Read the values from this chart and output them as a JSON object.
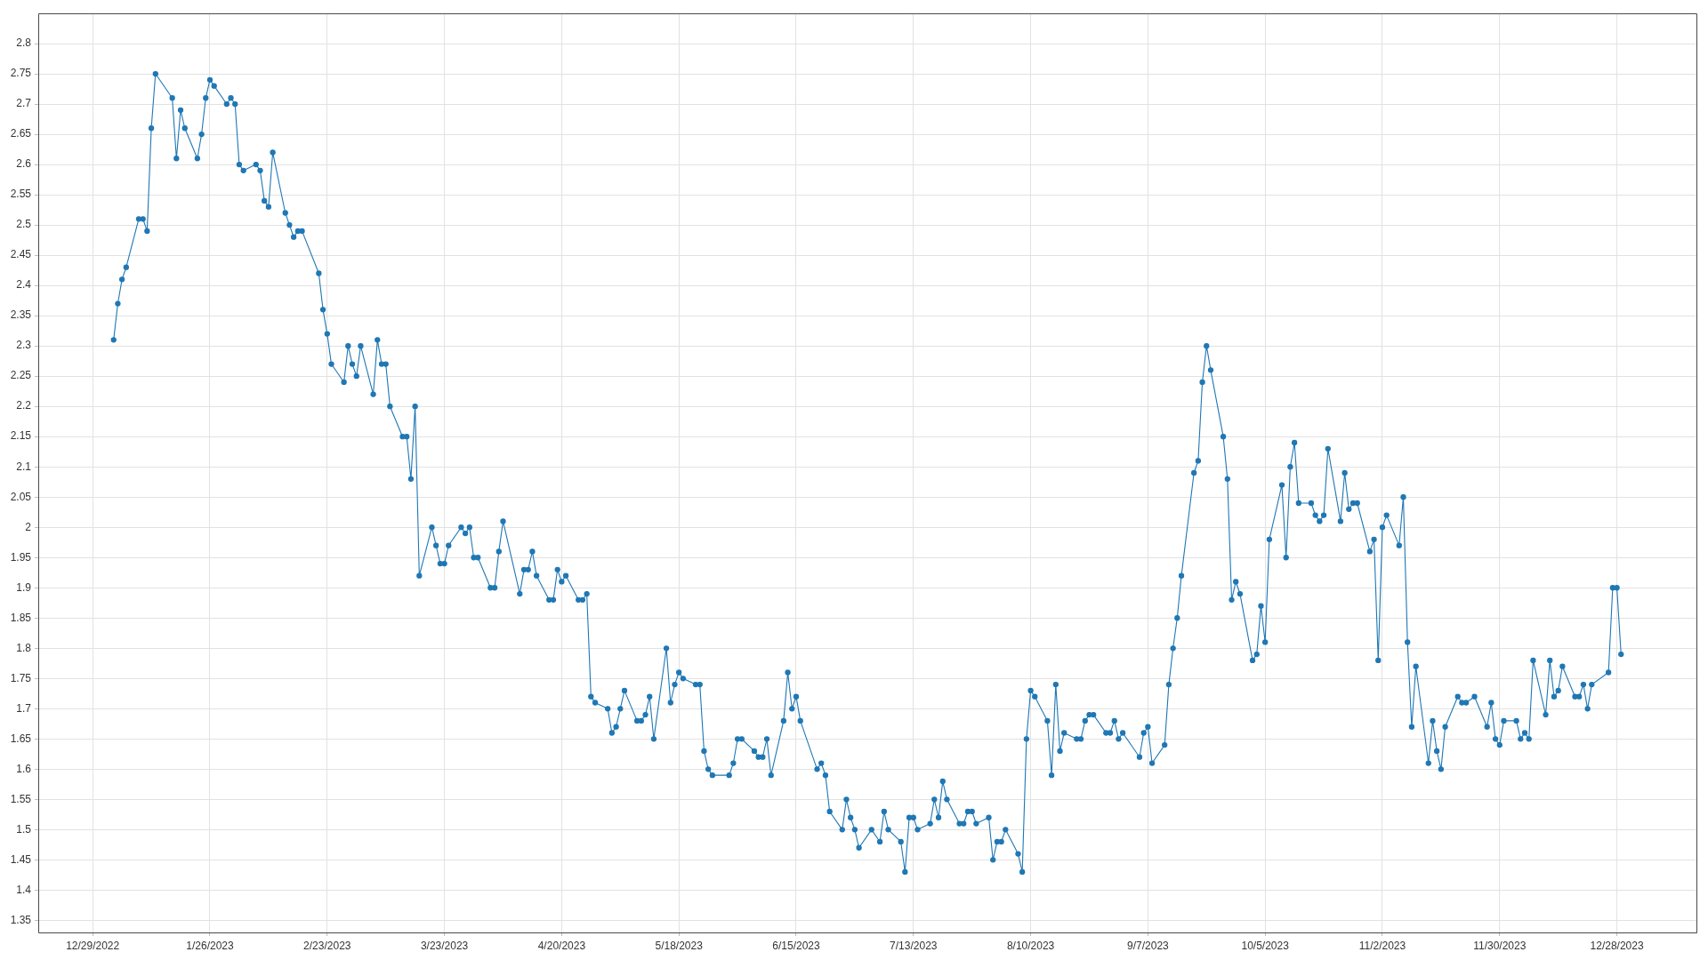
{
  "chart_data": {
    "type": "line",
    "marker": "circle",
    "line_style": "solid",
    "grid": true,
    "xlim": [
      "2022-12-16",
      "2024-01-16"
    ],
    "xticks": [
      {
        "value": "2022-12-29",
        "label": "12/29/2022"
      },
      {
        "value": "2023-01-26",
        "label": "1/26/2023"
      },
      {
        "value": "2023-02-23",
        "label": "2/23/2023"
      },
      {
        "value": "2023-03-23",
        "label": "3/23/2023"
      },
      {
        "value": "2023-04-20",
        "label": "4/20/2023"
      },
      {
        "value": "2023-05-18",
        "label": "5/18/2023"
      },
      {
        "value": "2023-06-15",
        "label": "6/15/2023"
      },
      {
        "value": "2023-07-13",
        "label": "7/13/2023"
      },
      {
        "value": "2023-08-10",
        "label": "8/10/2023"
      },
      {
        "value": "2023-09-07",
        "label": "9/7/2023"
      },
      {
        "value": "2023-10-05",
        "label": "10/5/2023"
      },
      {
        "value": "2023-11-02",
        "label": "11/2/2023"
      },
      {
        "value": "2023-11-30",
        "label": "11/30/2023"
      },
      {
        "value": "2023-12-28",
        "label": "12/28/2023"
      }
    ],
    "ylim": [
      1.33,
      2.85
    ],
    "yticks": [
      1.35,
      1.4,
      1.45,
      1.5,
      1.55,
      1.6,
      1.65,
      1.7,
      1.75,
      1.8,
      1.85,
      1.9,
      1.95,
      2,
      2.05,
      2.1,
      2.15,
      2.2,
      2.25,
      2.3,
      2.35,
      2.4,
      2.45,
      2.5,
      2.55,
      2.6,
      2.65,
      2.7,
      2.75,
      2.8
    ],
    "x": [
      "2023-01-03",
      "2023-01-04",
      "2023-01-05",
      "2023-01-06",
      "2023-01-09",
      "2023-01-10",
      "2023-01-11",
      "2023-01-12",
      "2023-01-13",
      "2023-01-17",
      "2023-01-18",
      "2023-01-19",
      "2023-01-20",
      "2023-01-23",
      "2023-01-24",
      "2023-01-25",
      "2023-01-26",
      "2023-01-27",
      "2023-01-30",
      "2023-01-31",
      "2023-02-01",
      "2023-02-02",
      "2023-02-03",
      "2023-02-06",
      "2023-02-07",
      "2023-02-08",
      "2023-02-09",
      "2023-02-10",
      "2023-02-13",
      "2023-02-14",
      "2023-02-15",
      "2023-02-16",
      "2023-02-17",
      "2023-02-21",
      "2023-02-22",
      "2023-02-23",
      "2023-02-24",
      "2023-02-27",
      "2023-02-28",
      "2023-03-01",
      "2023-03-02",
      "2023-03-03",
      "2023-03-06",
      "2023-03-07",
      "2023-03-08",
      "2023-03-09",
      "2023-03-10",
      "2023-03-13",
      "2023-03-14",
      "2023-03-15",
      "2023-03-16",
      "2023-03-17",
      "2023-03-20",
      "2023-03-21",
      "2023-03-22",
      "2023-03-23",
      "2023-03-24",
      "2023-03-27",
      "2023-03-28",
      "2023-03-29",
      "2023-03-30",
      "2023-03-31",
      "2023-04-03",
      "2023-04-04",
      "2023-04-05",
      "2023-04-06",
      "2023-04-10",
      "2023-04-11",
      "2023-04-12",
      "2023-04-13",
      "2023-04-14",
      "2023-04-17",
      "2023-04-18",
      "2023-04-19",
      "2023-04-20",
      "2023-04-21",
      "2023-04-24",
      "2023-04-25",
      "2023-04-26",
      "2023-04-27",
      "2023-04-28",
      "2023-05-01",
      "2023-05-02",
      "2023-05-03",
      "2023-05-04",
      "2023-05-05",
      "2023-05-08",
      "2023-05-09",
      "2023-05-10",
      "2023-05-11",
      "2023-05-12",
      "2023-05-15",
      "2023-05-16",
      "2023-05-17",
      "2023-05-18",
      "2023-05-19",
      "2023-05-22",
      "2023-05-23",
      "2023-05-24",
      "2023-05-25",
      "2023-05-26",
      "2023-05-30",
      "2023-05-31",
      "2023-06-01",
      "2023-06-02",
      "2023-06-05",
      "2023-06-06",
      "2023-06-07",
      "2023-06-08",
      "2023-06-09",
      "2023-06-12",
      "2023-06-13",
      "2023-06-14",
      "2023-06-15",
      "2023-06-16",
      "2023-06-20",
      "2023-06-21",
      "2023-06-22",
      "2023-06-23",
      "2023-06-26",
      "2023-06-27",
      "2023-06-28",
      "2023-06-29",
      "2023-06-30",
      "2023-07-03",
      "2023-07-05",
      "2023-07-06",
      "2023-07-07",
      "2023-07-10",
      "2023-07-11",
      "2023-07-12",
      "2023-07-13",
      "2023-07-14",
      "2023-07-17",
      "2023-07-18",
      "2023-07-19",
      "2023-07-20",
      "2023-07-21",
      "2023-07-24",
      "2023-07-25",
      "2023-07-26",
      "2023-07-27",
      "2023-07-28",
      "2023-07-31",
      "2023-08-01",
      "2023-08-02",
      "2023-08-03",
      "2023-08-04",
      "2023-08-07",
      "2023-08-08",
      "2023-08-09",
      "2023-08-10",
      "2023-08-11",
      "2023-08-14",
      "2023-08-15",
      "2023-08-16",
      "2023-08-17",
      "2023-08-18",
      "2023-08-21",
      "2023-08-22",
      "2023-08-23",
      "2023-08-24",
      "2023-08-25",
      "2023-08-28",
      "2023-08-29",
      "2023-08-30",
      "2023-08-31",
      "2023-09-01",
      "2023-09-05",
      "2023-09-06",
      "2023-09-07",
      "2023-09-08",
      "2023-09-11",
      "2023-09-12",
      "2023-09-13",
      "2023-09-14",
      "2023-09-15",
      "2023-09-18",
      "2023-09-19",
      "2023-09-20",
      "2023-09-21",
      "2023-09-22",
      "2023-09-25",
      "2023-09-26",
      "2023-09-27",
      "2023-09-28",
      "2023-09-29",
      "2023-10-02",
      "2023-10-03",
      "2023-10-04",
      "2023-10-05",
      "2023-10-06",
      "2023-10-09",
      "2023-10-10",
      "2023-10-11",
      "2023-10-12",
      "2023-10-13",
      "2023-10-16",
      "2023-10-17",
      "2023-10-18",
      "2023-10-19",
      "2023-10-20",
      "2023-10-23",
      "2023-10-24",
      "2023-10-25",
      "2023-10-26",
      "2023-10-27",
      "2023-10-30",
      "2023-10-31",
      "2023-11-01",
      "2023-11-02",
      "2023-11-03",
      "2023-11-06",
      "2023-11-07",
      "2023-11-08",
      "2023-11-09",
      "2023-11-10",
      "2023-11-13",
      "2023-11-14",
      "2023-11-15",
      "2023-11-16",
      "2023-11-17",
      "2023-11-20",
      "2023-11-21",
      "2023-11-22",
      "2023-11-24",
      "2023-11-27",
      "2023-11-28",
      "2023-11-29",
      "2023-11-30",
      "2023-12-01",
      "2023-12-04",
      "2023-12-05",
      "2023-12-06",
      "2023-12-07",
      "2023-12-08",
      "2023-12-11",
      "2023-12-12",
      "2023-12-13",
      "2023-12-14",
      "2023-12-15",
      "2023-12-18",
      "2023-12-19",
      "2023-12-20",
      "2023-12-21",
      "2023-12-22",
      "2023-12-26",
      "2023-12-27",
      "2023-12-28",
      "2023-12-29"
    ],
    "series": [
      {
        "color": "#1f77b4",
        "values": [
          2.31,
          2.37,
          2.41,
          2.43,
          2.51,
          2.51,
          2.49,
          2.66,
          2.75,
          2.71,
          2.61,
          2.69,
          2.66,
          2.61,
          2.65,
          2.71,
          2.74,
          2.73,
          2.7,
          2.71,
          2.7,
          2.6,
          2.59,
          2.6,
          2.59,
          2.54,
          2.53,
          2.62,
          2.52,
          2.5,
          2.48,
          2.49,
          2.49,
          2.42,
          2.36,
          2.32,
          2.27,
          2.24,
          2.3,
          2.27,
          2.25,
          2.3,
          2.22,
          2.31,
          2.27,
          2.27,
          2.2,
          2.15,
          2.15,
          2.08,
          2.2,
          1.92,
          2.0,
          1.97,
          1.94,
          1.94,
          1.97,
          2.0,
          1.99,
          2.0,
          1.95,
          1.95,
          1.9,
          1.9,
          1.96,
          2.01,
          1.89,
          1.93,
          1.93,
          1.96,
          1.92,
          1.88,
          1.88,
          1.93,
          1.91,
          1.92,
          1.88,
          1.88,
          1.89,
          1.72,
          1.71,
          1.7,
          1.66,
          1.67,
          1.7,
          1.73,
          1.68,
          1.68,
          1.69,
          1.72,
          1.65,
          1.8,
          1.71,
          1.74,
          1.76,
          1.75,
          1.74,
          1.74,
          1.63,
          1.6,
          1.59,
          1.59,
          1.61,
          1.65,
          1.65,
          1.63,
          1.62,
          1.62,
          1.65,
          1.59,
          1.68,
          1.76,
          1.7,
          1.72,
          1.68,
          1.6,
          1.61,
          1.59,
          1.53,
          1.5,
          1.55,
          1.52,
          1.5,
          1.47,
          1.5,
          1.48,
          1.53,
          1.5,
          1.48,
          1.43,
          1.52,
          1.52,
          1.5,
          1.51,
          1.55,
          1.52,
          1.58,
          1.55,
          1.51,
          1.51,
          1.53,
          1.53,
          1.51,
          1.52,
          1.45,
          1.48,
          1.48,
          1.5,
          1.46,
          1.43,
          1.65,
          1.73,
          1.72,
          1.68,
          1.59,
          1.74,
          1.63,
          1.66,
          1.65,
          1.65,
          1.68,
          1.69,
          1.69,
          1.66,
          1.66,
          1.68,
          1.65,
          1.66,
          1.62,
          1.66,
          1.67,
          1.61,
          1.64,
          1.74,
          1.8,
          1.85,
          1.92,
          2.09,
          2.11,
          2.24,
          2.3,
          2.26,
          2.15,
          2.08,
          1.88,
          1.91,
          1.89,
          1.78,
          1.79,
          1.87,
          1.81,
          1.98,
          2.07,
          1.95,
          2.1,
          2.14,
          2.04,
          2.04,
          2.02,
          2.01,
          2.02,
          2.13,
          2.01,
          2.09,
          2.03,
          2.04,
          2.04,
          1.96,
          1.98,
          1.78,
          2.0,
          2.02,
          1.97,
          2.05,
          1.81,
          1.67,
          1.77,
          1.61,
          1.68,
          1.63,
          1.6,
          1.67,
          1.72,
          1.71,
          1.71,
          1.72,
          1.67,
          1.71,
          1.65,
          1.64,
          1.68,
          1.68,
          1.65,
          1.66,
          1.65,
          1.78,
          1.69,
          1.78,
          1.72,
          1.73,
          1.77,
          1.72,
          1.72,
          1.74,
          1.7,
          1.74,
          1.76,
          1.9,
          1.9,
          1.79
        ]
      }
    ]
  }
}
